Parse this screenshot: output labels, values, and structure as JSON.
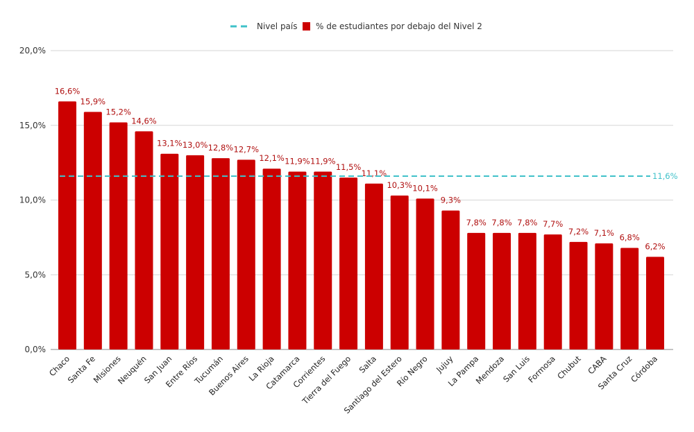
{
  "chart_data": {
    "type": "bar",
    "title": "",
    "xlabel": "",
    "ylabel": "",
    "ylim": [
      0,
      20
    ],
    "yticks": [
      "0,0%",
      "5,0%",
      "10,0%",
      "15,0%",
      "20,0%"
    ],
    "grid": true,
    "legend_position": "top",
    "categories": [
      "Chaco",
      "Santa Fe",
      "Misiones",
      "Neuquén",
      "San Juan",
      "Entre Ríos",
      "Tucumán",
      "Buenos Aires",
      "La Rioja",
      "Catamarca",
      "Corrientes",
      "Tierra del Fuego",
      "Salta",
      "Santiago del Estero",
      "Río Negro",
      "Jujuy",
      "La Pampa",
      "Mendoza",
      "San Luis",
      "Formosa",
      "Chubut",
      "CABA",
      "Santa Cruz",
      "Córdoba"
    ],
    "series": [
      {
        "name": "% de estudiantes por debajo del Nivel 2",
        "type": "bar",
        "color": "#cc0000",
        "values": [
          16.6,
          15.9,
          15.2,
          14.6,
          13.1,
          13.0,
          12.8,
          12.7,
          12.1,
          11.9,
          11.9,
          11.5,
          11.1,
          10.3,
          10.1,
          9.3,
          7.8,
          7.8,
          7.8,
          7.7,
          7.2,
          7.1,
          6.8,
          6.2
        ],
        "labels": [
          "16,6%",
          "15,9%",
          "15,2%",
          "14,6%",
          "13,1%",
          "13,0%",
          "12,8%",
          "12,7%",
          "12,1%",
          "11,9%",
          "11,9%",
          "11,5%",
          "11,1%",
          "10,3%",
          "10,1%",
          "9,3%",
          "7,8%",
          "7,8%",
          "7,8%",
          "7,7%",
          "7,2%",
          "7,1%",
          "6,8%",
          "6,2%"
        ]
      },
      {
        "name": "Nivel país",
        "type": "line-dashed",
        "color": "#3fc1c9",
        "value": 11.6,
        "label": "11,6%"
      }
    ]
  }
}
